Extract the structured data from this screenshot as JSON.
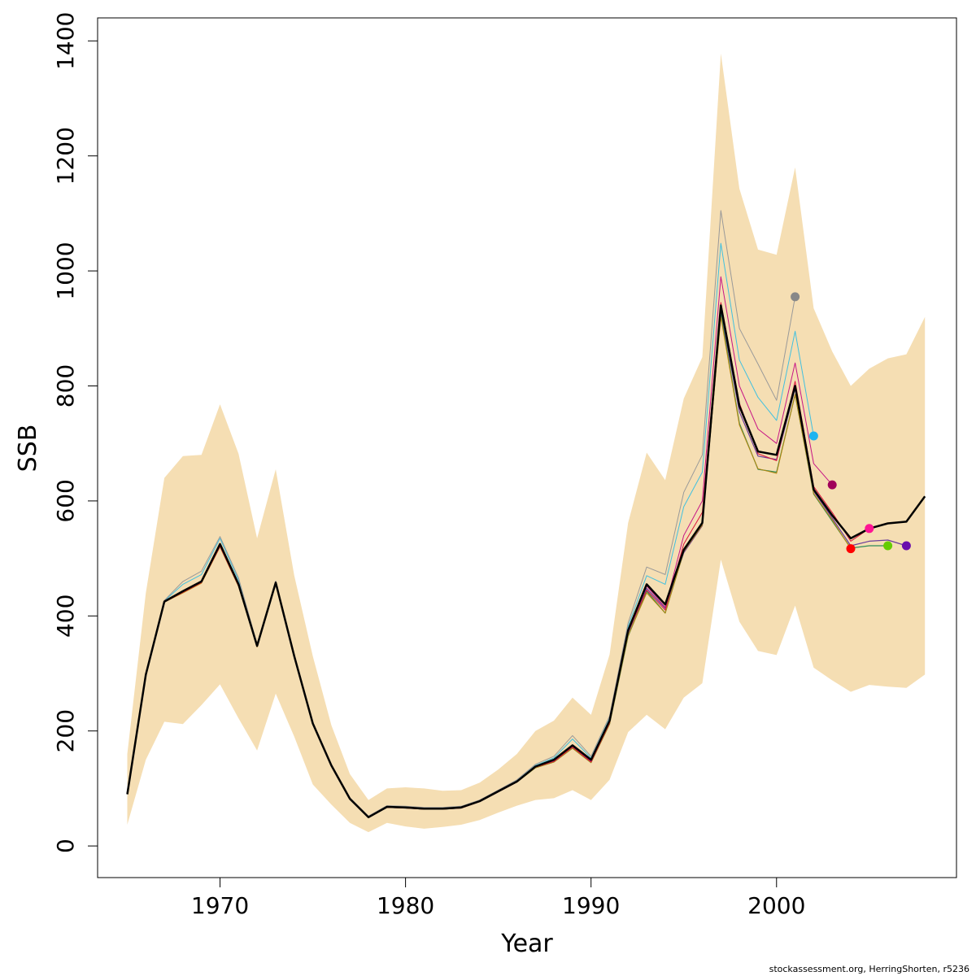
{
  "footnote": "stockassessment.org, HerringShorten, r5236",
  "chart_data": {
    "type": "line",
    "xlabel": "Year",
    "ylabel": "SSB",
    "xlim": [
      1963.4,
      2009.7
    ],
    "ylim": [
      -55,
      1440
    ],
    "x_ticks": [
      1970,
      1980,
      1990,
      2000
    ],
    "y_ticks": [
      0,
      200,
      400,
      600,
      800,
      1000,
      1200,
      1400
    ],
    "band_color": "#f5deb3",
    "band": {
      "years": [
        1965,
        1966,
        1967,
        1968,
        1969,
        1970,
        1971,
        1972,
        1973,
        1974,
        1975,
        1976,
        1977,
        1978,
        1979,
        1980,
        1981,
        1982,
        1983,
        1984,
        1985,
        1986,
        1987,
        1988,
        1989,
        1990,
        1991,
        1992,
        1993,
        1994,
        1995,
        1996,
        1997,
        1998,
        1999,
        2000,
        2001,
        2002,
        2003,
        2004,
        2005,
        2006,
        2007,
        2008
      ],
      "upper": [
        160,
        440,
        640,
        678,
        680,
        768,
        682,
        535,
        655,
        470,
        330,
        210,
        125,
        80,
        100,
        102,
        100,
        96,
        97,
        110,
        133,
        160,
        200,
        218,
        258,
        228,
        333,
        562,
        684,
        636,
        778,
        850,
        1378,
        1143,
        1037,
        1028,
        1180,
        935,
        860,
        800,
        830,
        848,
        855,
        920
      ],
      "lower": [
        37,
        150,
        216,
        212,
        245,
        281,
        222,
        166,
        265,
        190,
        107,
        72,
        40,
        24,
        40,
        34,
        30,
        33,
        37,
        45,
        58,
        70,
        80,
        83,
        97,
        80,
        115,
        198,
        228,
        203,
        258,
        283,
        498,
        390,
        339,
        332,
        418,
        310,
        288,
        268,
        280,
        277,
        275,
        298
      ]
    },
    "series": [
      {
        "color": "#000000",
        "width": 2.5,
        "years": [
          1965,
          1966,
          1967,
          1968,
          1969,
          1970,
          1971,
          1972,
          1973,
          1974,
          1975,
          1976,
          1977,
          1978,
          1979,
          1980,
          1981,
          1982,
          1983,
          1984,
          1985,
          1986,
          1987,
          1988,
          1989,
          1990,
          1991,
          1992,
          1993,
          1994,
          1995,
          1996,
          1997,
          1998,
          1999,
          2000,
          2001,
          2002,
          2003,
          2004,
          2005,
          2006,
          2007,
          2008
        ],
        "values": [
          90,
          298,
          425,
          443,
          460,
          525,
          455,
          348,
          458,
          330,
          213,
          140,
          82,
          50,
          68,
          67,
          65,
          65,
          67,
          78,
          95,
          112,
          138,
          150,
          175,
          150,
          218,
          375,
          455,
          420,
          515,
          562,
          940,
          765,
          686,
          680,
          800,
          620,
          575,
          535,
          552,
          561,
          564,
          608
        ]
      },
      {
        "color": "#6a3d9a",
        "width": 1.2,
        "years": [
          1965,
          1966,
          1967,
          1968,
          1969,
          1970,
          1971,
          1972,
          1973,
          1974,
          1975,
          1976,
          1977,
          1978,
          1979,
          1980,
          1981,
          1982,
          1983,
          1984,
          1985,
          1986,
          1987,
          1988,
          1989,
          1990,
          1991,
          1992,
          1993,
          1994,
          1995,
          1996,
          1997,
          1998,
          1999,
          2000,
          2001,
          2002,
          2003,
          2004,
          2005,
          2006,
          2007
        ],
        "values": [
          90,
          297,
          424,
          442,
          459,
          522,
          453,
          347,
          457,
          328,
          212,
          139,
          81,
          50,
          67,
          66,
          64,
          64,
          66,
          77,
          94,
          111,
          137,
          148,
          172,
          147,
          215,
          370,
          448,
          413,
          510,
          557,
          930,
          755,
          678,
          672,
          795,
          617,
          570,
          522,
          530,
          532,
          522
        ],
        "point_color": "#6a0dad"
      },
      {
        "color": "#2e8b57",
        "width": 1.2,
        "years": [
          1965,
          1966,
          1967,
          1968,
          1969,
          1970,
          1971,
          1972,
          1973,
          1974,
          1975,
          1976,
          1977,
          1978,
          1979,
          1980,
          1981,
          1982,
          1983,
          1984,
          1985,
          1986,
          1987,
          1988,
          1989,
          1990,
          1991,
          1992,
          1993,
          1994,
          1995,
          1996,
          1997,
          1998,
          1999,
          2000,
          2001,
          2002,
          2003,
          2004,
          2005,
          2006
        ],
        "values": [
          90,
          297,
          424,
          441,
          458,
          521,
          452,
          347,
          457,
          328,
          212,
          139,
          81,
          50,
          67,
          66,
          64,
          64,
          66,
          77,
          94,
          111,
          136,
          146,
          170,
          145,
          212,
          365,
          443,
          405,
          512,
          560,
          925,
          735,
          655,
          650,
          785,
          612,
          565,
          518,
          522,
          522
        ],
        "point_color": "#66cc00"
      },
      {
        "color": "#b8860b",
        "width": 1.0,
        "years": [
          1965,
          1966,
          1967,
          1968,
          1969,
          1970,
          1971,
          1972,
          1973,
          1974,
          1975,
          1976,
          1977,
          1978,
          1979,
          1980,
          1981,
          1982,
          1983,
          1984,
          1985,
          1986,
          1987,
          1988,
          1989,
          1990,
          1991,
          1992,
          1993,
          1994,
          1995,
          1996,
          1997,
          1998,
          1999,
          2000,
          2001,
          2002,
          2003,
          2004
        ],
        "values": [
          90,
          297,
          424,
          440,
          457,
          520,
          451,
          346,
          456,
          328,
          212,
          139,
          81,
          50,
          67,
          66,
          64,
          64,
          66,
          77,
          94,
          111,
          136,
          146,
          170,
          145,
          212,
          366,
          440,
          405,
          512,
          558,
          920,
          732,
          656,
          648,
          785,
          613,
          567,
          517
        ],
        "point_color": "#ff0000"
      },
      {
        "color": "#dc143c",
        "width": 1.0,
        "years": [
          1965,
          1966,
          1967,
          1968,
          1969,
          1970,
          1971,
          1972,
          1973,
          1974,
          1975,
          1976,
          1977,
          1978,
          1979,
          1980,
          1981,
          1982,
          1983,
          1984,
          1985,
          1986,
          1987,
          1988,
          1989,
          1990,
          1991,
          1992,
          1993,
          1994,
          1995,
          1996,
          1997,
          1998,
          1999,
          2000,
          2001,
          2002,
          2003,
          2004,
          2005
        ],
        "values": [
          90,
          297,
          424,
          441,
          458,
          521,
          452,
          347,
          457,
          328,
          212,
          139,
          81,
          50,
          67,
          66,
          64,
          64,
          66,
          77,
          94,
          111,
          137,
          147,
          172,
          146,
          214,
          372,
          445,
          410,
          525,
          580,
          945,
          770,
          682,
          670,
          808,
          625,
          580,
          530,
          552
        ],
        "point_color": "#ff1493"
      },
      {
        "color": "#c71585",
        "width": 1.0,
        "years": [
          1965,
          1966,
          1967,
          1968,
          1969,
          1970,
          1971,
          1972,
          1973,
          1974,
          1975,
          1976,
          1977,
          1978,
          1979,
          1980,
          1981,
          1982,
          1983,
          1984,
          1985,
          1986,
          1987,
          1988,
          1989,
          1990,
          1991,
          1992,
          1993,
          1994,
          1995,
          1996,
          1997,
          1998,
          1999,
          2000,
          2001,
          2002,
          2003
        ],
        "values": [
          90,
          297,
          425,
          443,
          460,
          524,
          454,
          348,
          458,
          329,
          213,
          140,
          82,
          50,
          68,
          67,
          65,
          65,
          67,
          78,
          95,
          112,
          138,
          149,
          174,
          148,
          216,
          374,
          452,
          415,
          540,
          600,
          990,
          800,
          725,
          700,
          840,
          665,
          628
        ],
        "point_color": "#a0005a"
      },
      {
        "color": "#40c0e0",
        "width": 1.0,
        "years": [
          1965,
          1966,
          1967,
          1968,
          1969,
          1970,
          1971,
          1972,
          1973,
          1974,
          1975,
          1976,
          1977,
          1978,
          1979,
          1980,
          1981,
          1982,
          1983,
          1984,
          1985,
          1986,
          1987,
          1988,
          1989,
          1990,
          1991,
          1992,
          1993,
          1994,
          1995,
          1996,
          1997,
          1998,
          1999,
          2000,
          2001,
          2002
        ],
        "values": [
          90,
          298,
          426,
          455,
          472,
          535,
          462,
          350,
          460,
          332,
          214,
          141,
          83,
          51,
          69,
          68,
          66,
          66,
          68,
          79,
          96,
          114,
          140,
          153,
          186,
          153,
          222,
          382,
          470,
          455,
          590,
          650,
          1048,
          845,
          780,
          740,
          895,
          713
        ],
        "point_color": "#1eb4f0"
      },
      {
        "color": "#999999",
        "width": 1.0,
        "years": [
          1965,
          1966,
          1967,
          1968,
          1969,
          1970,
          1971,
          1972,
          1973,
          1974,
          1975,
          1976,
          1977,
          1978,
          1979,
          1980,
          1981,
          1982,
          1983,
          1984,
          1985,
          1986,
          1987,
          1988,
          1989,
          1990,
          1991,
          1992,
          1993,
          1994,
          1995,
          1996,
          1997,
          1998,
          1999,
          2000,
          2001
        ],
        "values": [
          90,
          298,
          427,
          460,
          478,
          538,
          466,
          351,
          461,
          333,
          215,
          142,
          84,
          52,
          70,
          69,
          67,
          67,
          69,
          80,
          97,
          115,
          142,
          156,
          192,
          156,
          226,
          388,
          485,
          472,
          615,
          680,
          1105,
          900,
          838,
          775,
          955
        ],
        "point_color": "#888888"
      }
    ]
  }
}
